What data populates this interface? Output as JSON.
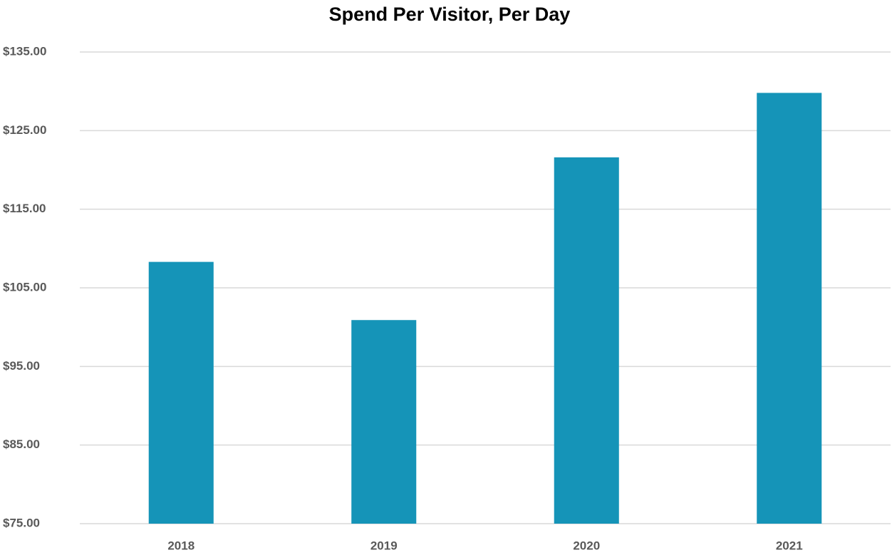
{
  "chart_data": {
    "type": "bar",
    "title": "Spend Per Visitor, Per Day",
    "categories": [
      "2018",
      "2019",
      "2020",
      "2021"
    ],
    "values": [
      108.3,
      100.9,
      121.6,
      129.8
    ],
    "color": "#1594b8",
    "ylim": [
      75,
      135
    ],
    "yticks": [
      {
        "value": 75,
        "label": "$75.00"
      },
      {
        "value": 85,
        "label": "$85.00"
      },
      {
        "value": 95,
        "label": "$95.00"
      },
      {
        "value": 105,
        "label": "$105.00"
      },
      {
        "value": 115,
        "label": "$115.00"
      },
      {
        "value": 125,
        "label": "$125.00"
      },
      {
        "value": 135,
        "label": "$135.00"
      }
    ],
    "grid": true
  }
}
